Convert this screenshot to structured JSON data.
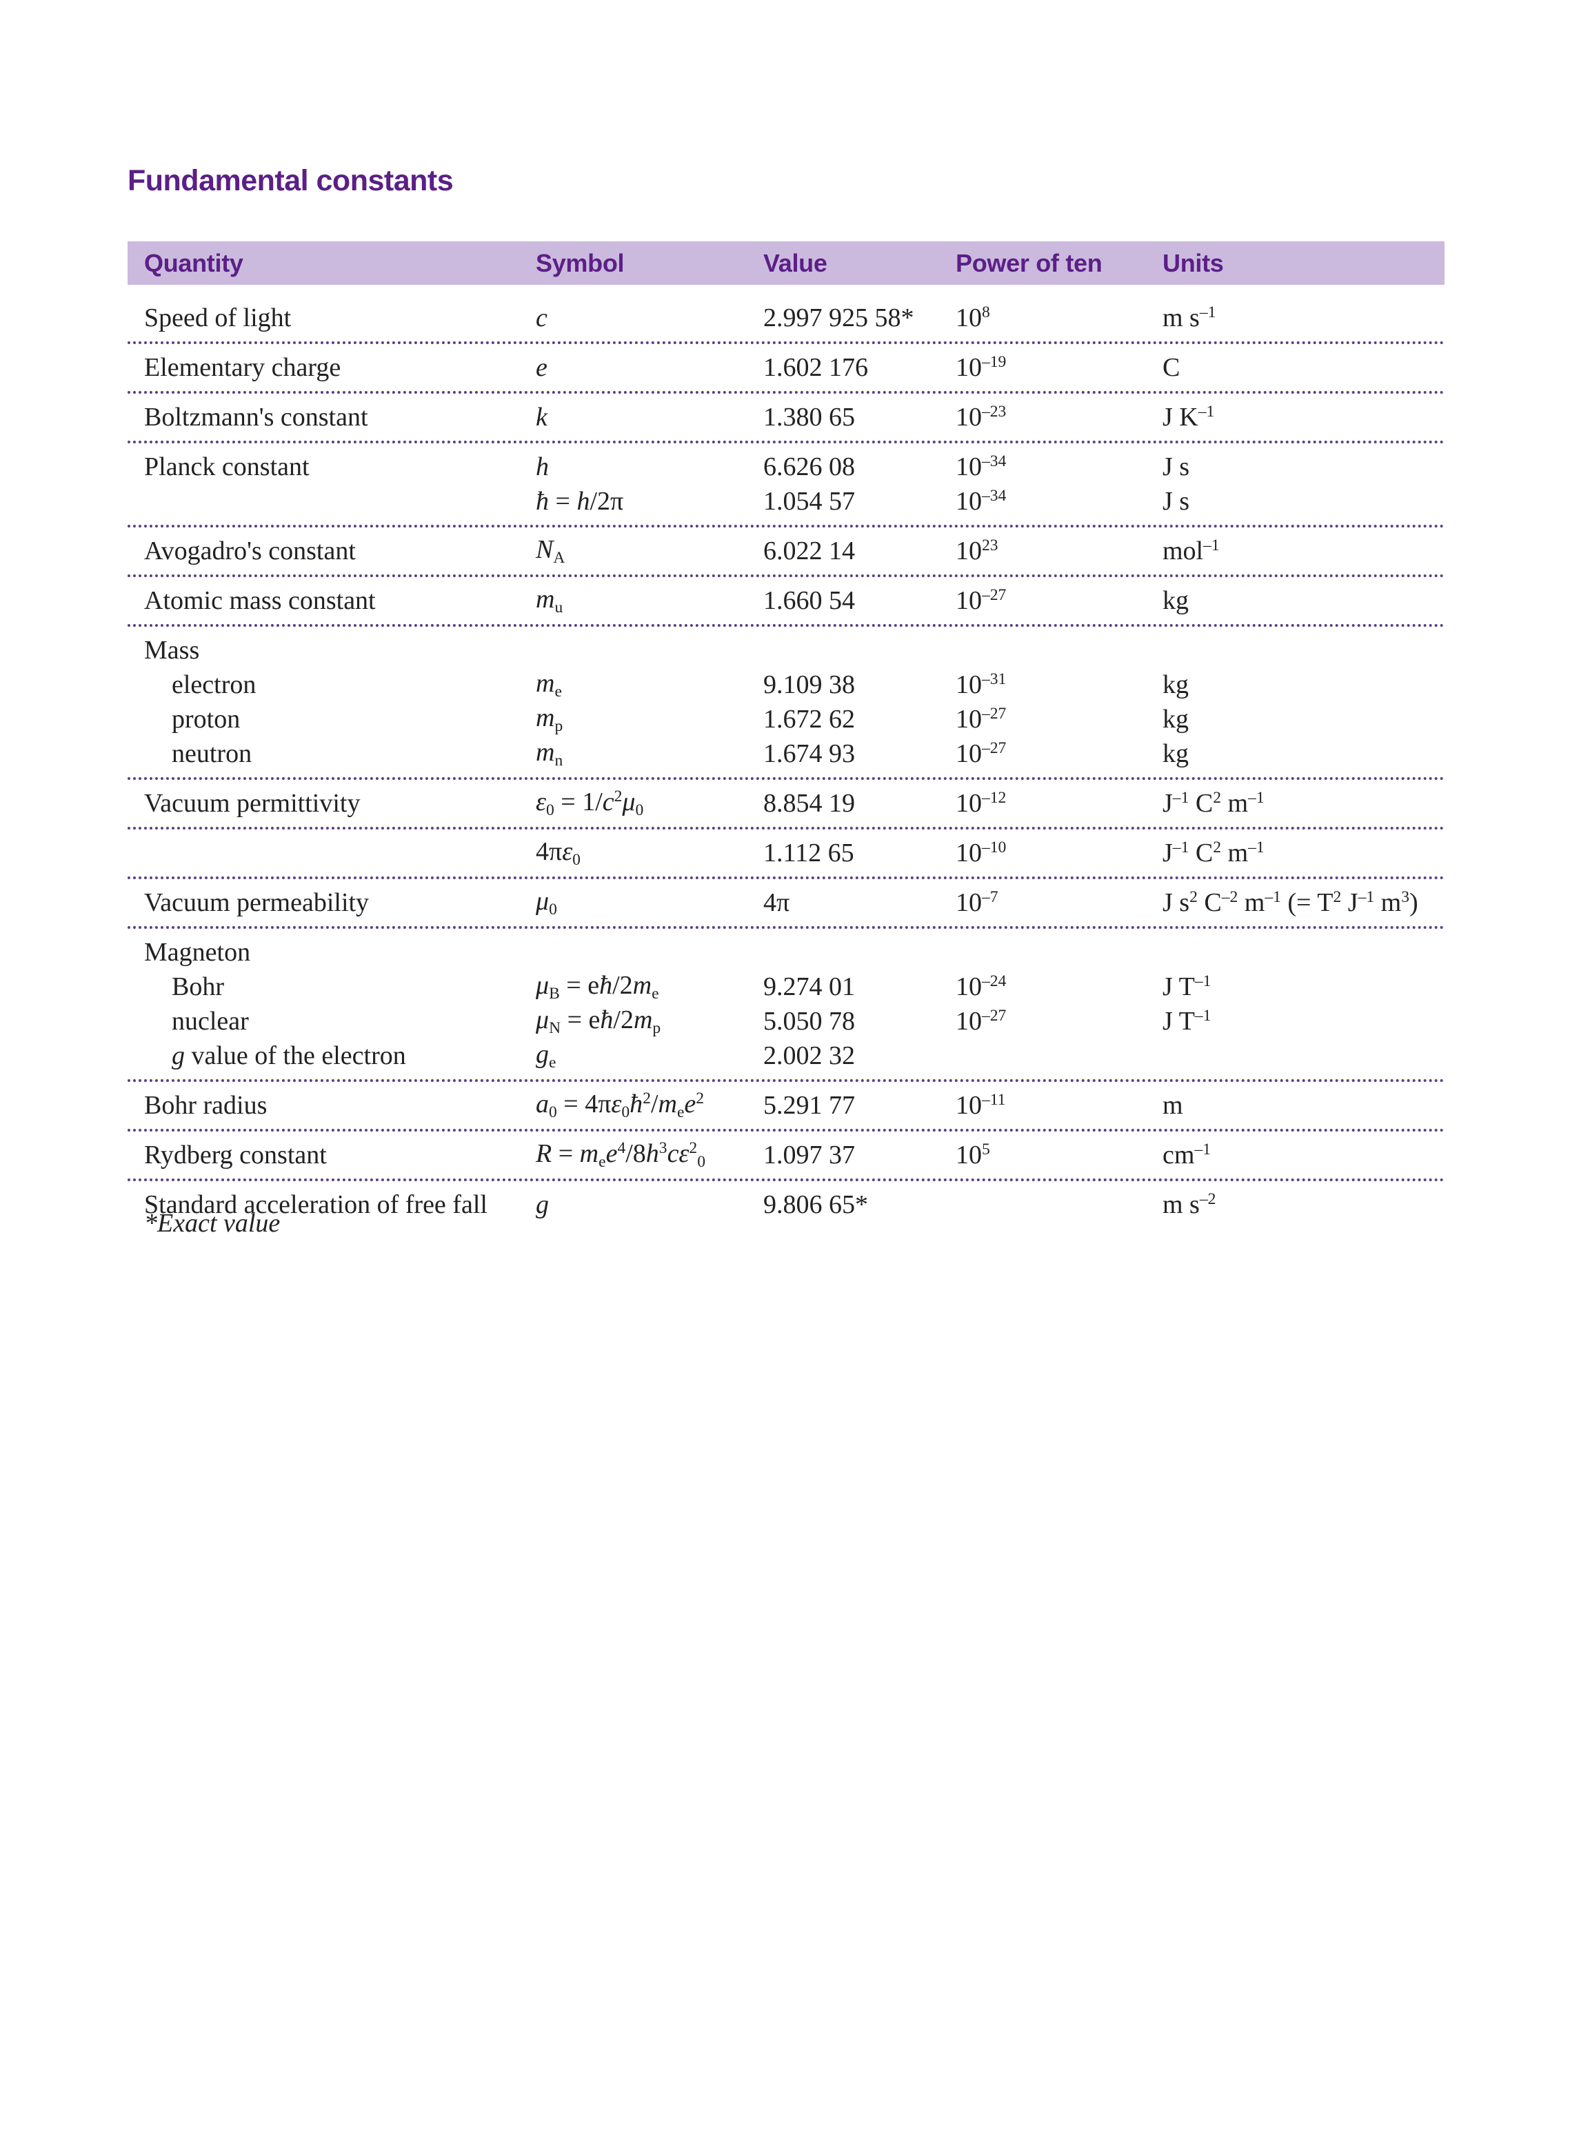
{
  "title": "Fundamental constants",
  "table": {
    "header": [
      "Quantity",
      "Symbol",
      "Value",
      "Power of ten",
      "Units"
    ],
    "groups": [
      {
        "rows": [
          [
            "Speed of light",
            [
              {
                "i": "c"
              }
            ],
            "2.997 925 58*",
            [
              "10",
              {
                "sup": "8"
              }
            ],
            [
              "m s",
              {
                "sup": "–1"
              }
            ]
          ]
        ]
      },
      {
        "rows": [
          [
            "Elementary charge",
            [
              {
                "i": "e"
              }
            ],
            "1.602 176",
            [
              "10",
              {
                "sup": "–19"
              }
            ],
            "C"
          ]
        ]
      },
      {
        "rows": [
          [
            "Boltzmann's constant",
            [
              {
                "i": "k"
              }
            ],
            "1.380 65",
            [
              "10",
              {
                "sup": "–23"
              }
            ],
            [
              "J K",
              {
                "sup": "–1"
              }
            ]
          ]
        ]
      },
      {
        "rows": [
          [
            "Planck constant",
            [
              {
                "i": "h"
              }
            ],
            "6.626 08",
            [
              "10",
              {
                "sup": "–34"
              }
            ],
            "J s"
          ],
          [
            null,
            [
              {
                "i": "ħ"
              },
              " = ",
              {
                "i": "h"
              },
              "/2π"
            ],
            "1.054 57",
            [
              "10",
              {
                "sup": "–34"
              }
            ],
            "J s"
          ]
        ]
      },
      {
        "rows": [
          [
            "Avogadro's constant",
            [
              {
                "i": "N"
              },
              {
                "sub": "A"
              }
            ],
            "6.022 14",
            [
              "10",
              {
                "sup": "23"
              }
            ],
            [
              "mol",
              {
                "sup": "–1"
              }
            ]
          ]
        ]
      },
      {
        "rows": [
          [
            "Atomic mass constant",
            [
              {
                "i": "m"
              },
              {
                "sub": "u"
              }
            ],
            "1.660 54",
            [
              "10",
              {
                "sup": "–27"
              }
            ],
            "kg"
          ]
        ]
      },
      {
        "label": "Mass",
        "rows": [
          [
            "electron",
            [
              {
                "i": "m"
              },
              {
                "sub": "e"
              }
            ],
            "9.109 38",
            [
              "10",
              {
                "sup": "–31"
              }
            ],
            "kg"
          ],
          [
            "proton",
            [
              {
                "i": "m"
              },
              {
                "sub": "p"
              }
            ],
            "1.672 62",
            [
              "10",
              {
                "sup": "–27"
              }
            ],
            "kg"
          ],
          [
            "neutron",
            [
              {
                "i": "m"
              },
              {
                "sub": "n"
              }
            ],
            "1.674 93",
            [
              "10",
              {
                "sup": "–27"
              }
            ],
            "kg"
          ]
        ]
      },
      {
        "rows": [
          [
            "Vacuum permittivity",
            [
              {
                "i": "ε"
              },
              {
                "sub": "0"
              },
              " = 1/",
              {
                "i": "c"
              },
              {
                "sup": "2"
              },
              {
                "i": "μ"
              },
              {
                "sub": "0"
              }
            ],
            "8.854 19",
            [
              "10",
              {
                "sup": "–12"
              }
            ],
            [
              "J",
              {
                "sup": "–1"
              },
              " C",
              {
                "sup": "2"
              },
              " m",
              {
                "sup": "–1"
              }
            ]
          ]
        ]
      },
      {
        "rows": [
          [
            null,
            [
              "4π",
              {
                "i": "ε"
              },
              {
                "sub": "0"
              }
            ],
            "1.112 65",
            [
              "10",
              {
                "sup": "–10"
              }
            ],
            [
              "J",
              {
                "sup": "–1"
              },
              " C",
              {
                "sup": "2"
              },
              " m",
              {
                "sup": "–1"
              }
            ]
          ]
        ]
      },
      {
        "rows": [
          [
            "Vacuum permeability",
            [
              {
                "i": "μ"
              },
              {
                "sub": "0"
              }
            ],
            "4π",
            [
              "10",
              {
                "sup": "–7"
              }
            ],
            [
              "J s",
              {
                "sup": "2"
              },
              " C",
              {
                "sup": "–2"
              },
              " m",
              {
                "sup": "–1"
              },
              " (= T",
              {
                "sup": "2"
              },
              " J",
              {
                "sup": "–1"
              },
              " m",
              {
                "sup": "3"
              },
              ")"
            ]
          ]
        ]
      },
      {
        "label": "Magneton",
        "rows": [
          [
            "Bohr",
            [
              {
                "i": "μ"
              },
              {
                "sub": "B"
              },
              " = e",
              {
                "i": "ħ"
              },
              "/2",
              {
                "i": "m"
              },
              {
                "sub": "e"
              }
            ],
            "9.274 01",
            [
              "10",
              {
                "sup": "–24"
              }
            ],
            [
              "J T",
              {
                "sup": "–1"
              }
            ]
          ],
          [
            "nuclear",
            [
              {
                "i": "μ"
              },
              {
                "sub": "N"
              },
              " = e",
              {
                "i": "ħ"
              },
              "/2",
              {
                "i": "m"
              },
              {
                "sub": "p"
              }
            ],
            "5.050 78",
            [
              "10",
              {
                "sup": "–27"
              }
            ],
            [
              "J T",
              {
                "sup": "–1"
              }
            ]
          ],
          [
            [
              {
                "i": "g"
              },
              " value of the electron"
            ],
            [
              {
                "i": "g"
              },
              {
                "sub": "e"
              }
            ],
            "2.002 32",
            null,
            null
          ]
        ]
      },
      {
        "rows": [
          [
            "Bohr radius",
            [
              {
                "i": "a"
              },
              {
                "sub": "0"
              },
              " = 4π",
              {
                "i": "ε"
              },
              {
                "sub": "0"
              },
              {
                "i": "ħ"
              },
              {
                "sup": "2"
              },
              "/",
              {
                "i": "m"
              },
              {
                "sub": "e"
              },
              {
                "i": "e"
              },
              {
                "sup": "2"
              }
            ],
            "5.291 77",
            [
              "10",
              {
                "sup": "–11"
              }
            ],
            "m"
          ]
        ]
      },
      {
        "rows": [
          [
            "Rydberg constant",
            [
              {
                "i": "R"
              },
              " = ",
              {
                "i": "m"
              },
              {
                "sub": "e"
              },
              {
                "i": "e"
              },
              {
                "sup": "4"
              },
              "/8",
              {
                "i": "h"
              },
              {
                "sup": "3"
              },
              {
                "i": "cε"
              },
              {
                "sup": "2"
              },
              {
                "sub": "0"
              }
            ],
            "1.097 37",
            [
              "10",
              {
                "sup": "5"
              }
            ],
            [
              "cm",
              {
                "sup": "–1"
              }
            ]
          ]
        ]
      },
      {
        "rows": [
          [
            "Standard acceleration of free fall",
            [
              {
                "i": "g"
              }
            ],
            "9.806 65*",
            null,
            [
              "m s",
              {
                "sup": "–2"
              }
            ]
          ]
        ]
      }
    ],
    "footnote": "*Exact value"
  }
}
